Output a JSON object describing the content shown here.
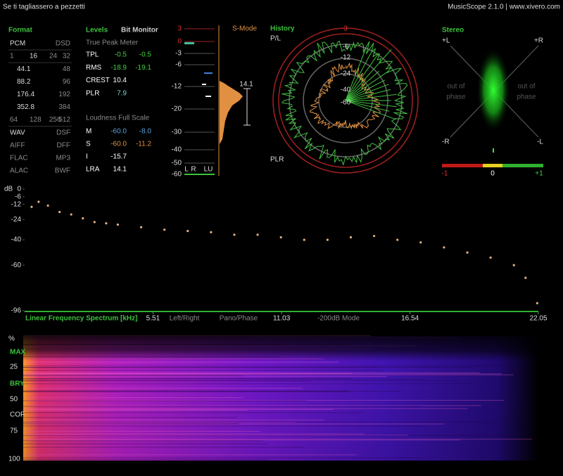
{
  "header": {
    "title": "Se ti tagliassero a pezzetti",
    "app": "MusicScope 2.1.0 | www.xivero.com"
  },
  "format": {
    "title": "Format",
    "rows": [
      [
        "PCM",
        "DSD"
      ],
      [
        "1",
        "16",
        "24",
        "32"
      ],
      [
        "44.1",
        "48"
      ],
      [
        "88.2",
        "96"
      ],
      [
        "176.4",
        "192"
      ],
      [
        "352.8",
        "384"
      ],
      [
        "64",
        "128",
        "256",
        "512"
      ],
      [
        "WAV",
        "DSF"
      ],
      [
        "AIFF",
        "DFF"
      ],
      [
        "FLAC",
        "MP3"
      ],
      [
        "ALAC",
        "BWF"
      ]
    ]
  },
  "levels": {
    "title": "Levels",
    "bit_monitor": "Bit Monitor",
    "true_peak": "True Peak Meter",
    "rows": [
      [
        "TPL",
        "-0.5",
        "-0.5"
      ],
      [
        "RMS",
        "-18.9",
        "-19.1"
      ],
      [
        "CREST",
        "10.4"
      ],
      [
        "PLR",
        "7.9"
      ]
    ],
    "loudness_title": "Loudness Full Scale",
    "loudness_rows": [
      [
        "M",
        "-60.0",
        "-8.0"
      ],
      [
        "S",
        "-60.0",
        "-11.2"
      ],
      [
        "I",
        "-15.7"
      ],
      [
        "LRA",
        "14.1"
      ]
    ]
  },
  "smode": {
    "title": "S-Mode",
    "ticks": [
      "3",
      "0",
      "-3",
      "-6",
      "-12",
      "-20",
      "-30",
      "-40",
      "-50",
      "-60"
    ],
    "lra": "14.1",
    "channels": [
      "L",
      "R",
      "LU"
    ]
  },
  "history": {
    "title": "History",
    "pl": "P/L",
    "plr": "PLR",
    "ring_labels": [
      "3",
      "-6",
      "-12",
      "-24",
      "-40",
      "-60"
    ]
  },
  "stereo": {
    "title": "Stereo",
    "corners": [
      "+L",
      "+R",
      "-R",
      "-L"
    ],
    "phase_left": [
      "out of",
      "phase"
    ],
    "phase_right": [
      "out of",
      "phase"
    ],
    "scale": [
      "-1",
      "0",
      "+1"
    ]
  },
  "chart_data": {
    "type": "scatter",
    "title": "Linear Frequency Spectrum [kHz]",
    "y_label": "dB",
    "x": [
      0.3,
      0.6,
      1.0,
      1.5,
      2,
      2.5,
      3,
      3.5,
      4,
      5,
      6,
      7,
      8,
      9,
      10,
      11,
      12,
      13,
      14,
      15,
      16,
      17,
      18,
      19,
      20,
      21,
      21.5,
      22
    ],
    "values": [
      -14,
      -10,
      -13,
      -18,
      -20,
      -23,
      -26,
      -27,
      -28,
      -30,
      -32,
      -33,
      -34,
      -36,
      -36,
      -38,
      -40,
      -40,
      -38,
      -37,
      -40,
      -42,
      -46,
      -50,
      -54,
      -60,
      -70,
      -90
    ],
    "color": "#e0b080",
    "xlim": [
      0,
      22.05
    ],
    "ylim": [
      -96,
      0
    ],
    "xticks": [
      5.51,
      11.03,
      16.54,
      22.05
    ],
    "yticks": [
      0,
      -6,
      -12,
      -24,
      -40,
      -60,
      -96
    ],
    "grid": false
  },
  "spectrum_tabs": [
    "Left/Right",
    "Pano/Phase",
    "-200dB Mode"
  ],
  "spectrogram": {
    "labels": [
      "%",
      "MAX",
      "25",
      "BRY",
      "50",
      "COF",
      "75",
      "100"
    ]
  }
}
